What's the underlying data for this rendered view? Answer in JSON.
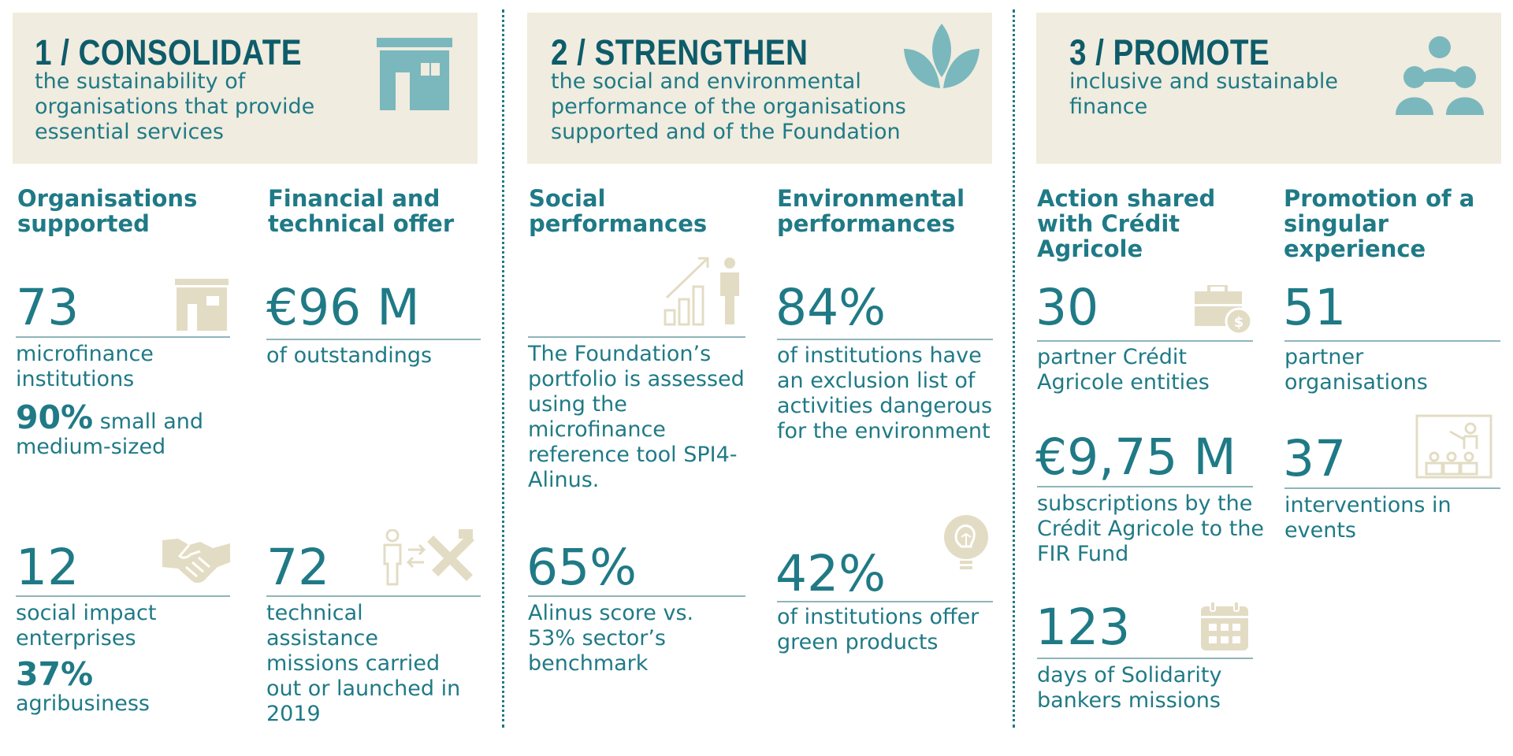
{
  "pillars": [
    {
      "title": "1 / CONSOLIDATE",
      "subtitle": "the sustainability of organisations that provide essential services",
      "icon": "building-icon"
    },
    {
      "title": "2 / STRENGTHEN",
      "subtitle": "the social and environmental performance of the organisations supported and of the Foundation",
      "icon": "leaves-icon"
    },
    {
      "title": "3 / PROMOTE",
      "subtitle": "inclusive and sustainable finance",
      "icon": "people-group-icon"
    }
  ],
  "sections": {
    "orgs": "Organisations supported",
    "offer": "Financial and technical offer",
    "social": "Social performances",
    "env": "Environmental performances",
    "ca": "Action shared with Crédit Agricole",
    "singular": "Promotion of a singular experience"
  },
  "stats": {
    "mfi": {
      "value": "73",
      "label": "microfinance institutions",
      "extra_pct": "90%",
      "extra_text": "small and medium-sized"
    },
    "outstand": {
      "value": "€96 M",
      "label": "of outstandings"
    },
    "sie": {
      "value": "12",
      "label": "social impact enterprises",
      "extra_pct": "37%",
      "extra_text": "agribusiness"
    },
    "ta": {
      "value": "72",
      "label": "technical assistance missions carried out or launched in 2019"
    },
    "portfolio": {
      "label": "The Foundation’s portfolio is assessed using the microfinance reference tool SPI4-Alinus."
    },
    "alinus": {
      "value": "65%",
      "label": "Alinus score vs. 53% sector’s benchmark"
    },
    "exclusion": {
      "value": "84%",
      "label": "of institutions have an exclusion list of activities dangerous for the environment"
    },
    "green": {
      "value": "42%",
      "label": "of institutions offer green products"
    },
    "partners_ca": {
      "value": "30",
      "label": "partner Crédit Agricole entities"
    },
    "subs": {
      "value": "€9,75 M",
      "label": "subscriptions by the Crédit Agricole to the FIR Fund"
    },
    "days": {
      "value": "123",
      "label": "days of Solidarity bankers missions"
    },
    "partner_orgs": {
      "value": "51",
      "label": "partner organisations"
    },
    "events": {
      "value": "37",
      "label": "interventions in events"
    }
  },
  "icons": [
    "building-icon",
    "leaves-icon",
    "people-group-icon",
    "store-icon",
    "growth-chart-person-icon",
    "handshake-icon",
    "person-tools-icon",
    "briefcase-dollar-icon",
    "lightbulb-icon",
    "calendar-icon",
    "presentation-icon"
  ],
  "colors": {
    "teal_dark": "#0e5c6a",
    "teal": "#1f7a86",
    "icon_teal": "#7ab8bd",
    "beige": "#f0ecdf",
    "icon_beige": "#e3dcc4"
  }
}
